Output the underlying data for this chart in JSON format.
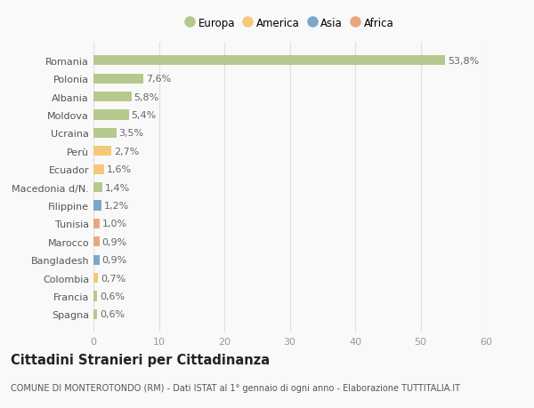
{
  "categories": [
    "Spagna",
    "Francia",
    "Colombia",
    "Bangladesh",
    "Marocco",
    "Tunisia",
    "Filippine",
    "Macedonia d/N.",
    "Ecuador",
    "Perù",
    "Ucraina",
    "Moldova",
    "Albania",
    "Polonia",
    "Romania"
  ],
  "values": [
    0.6,
    0.6,
    0.7,
    0.9,
    0.9,
    1.0,
    1.2,
    1.4,
    1.6,
    2.7,
    3.5,
    5.4,
    5.8,
    7.6,
    53.8
  ],
  "labels": [
    "0,6%",
    "0,6%",
    "0,7%",
    "0,9%",
    "0,9%",
    "1,0%",
    "1,2%",
    "1,4%",
    "1,6%",
    "2,7%",
    "3,5%",
    "5,4%",
    "5,8%",
    "7,6%",
    "53,8%"
  ],
  "colors": [
    "#b5c98e",
    "#b5c98e",
    "#f5c87a",
    "#7ba7c9",
    "#e8a87c",
    "#e8a87c",
    "#7ba7c9",
    "#b5c98e",
    "#f5c87a",
    "#f5c87a",
    "#b5c98e",
    "#b5c98e",
    "#b5c98e",
    "#b5c98e",
    "#b5c98e"
  ],
  "legend": [
    {
      "label": "Europa",
      "color": "#b5c98e"
    },
    {
      "label": "America",
      "color": "#f5c87a"
    },
    {
      "label": "Asia",
      "color": "#7ba7c9"
    },
    {
      "label": "Africa",
      "color": "#e8a87c"
    }
  ],
  "xlim": [
    0,
    60
  ],
  "xticks": [
    0,
    10,
    20,
    30,
    40,
    50,
    60
  ],
  "title": "Cittadini Stranieri per Cittadinanza",
  "subtitle": "COMUNE DI MONTEROTONDO (RM) - Dati ISTAT al 1° gennaio di ogni anno - Elaborazione TUTTITALIA.IT",
  "background_color": "#f9f9f9",
  "grid_color": "#e0e0e0",
  "bar_height": 0.55,
  "label_fontsize": 8,
  "tick_fontsize": 8,
  "title_fontsize": 10.5,
  "subtitle_fontsize": 7
}
